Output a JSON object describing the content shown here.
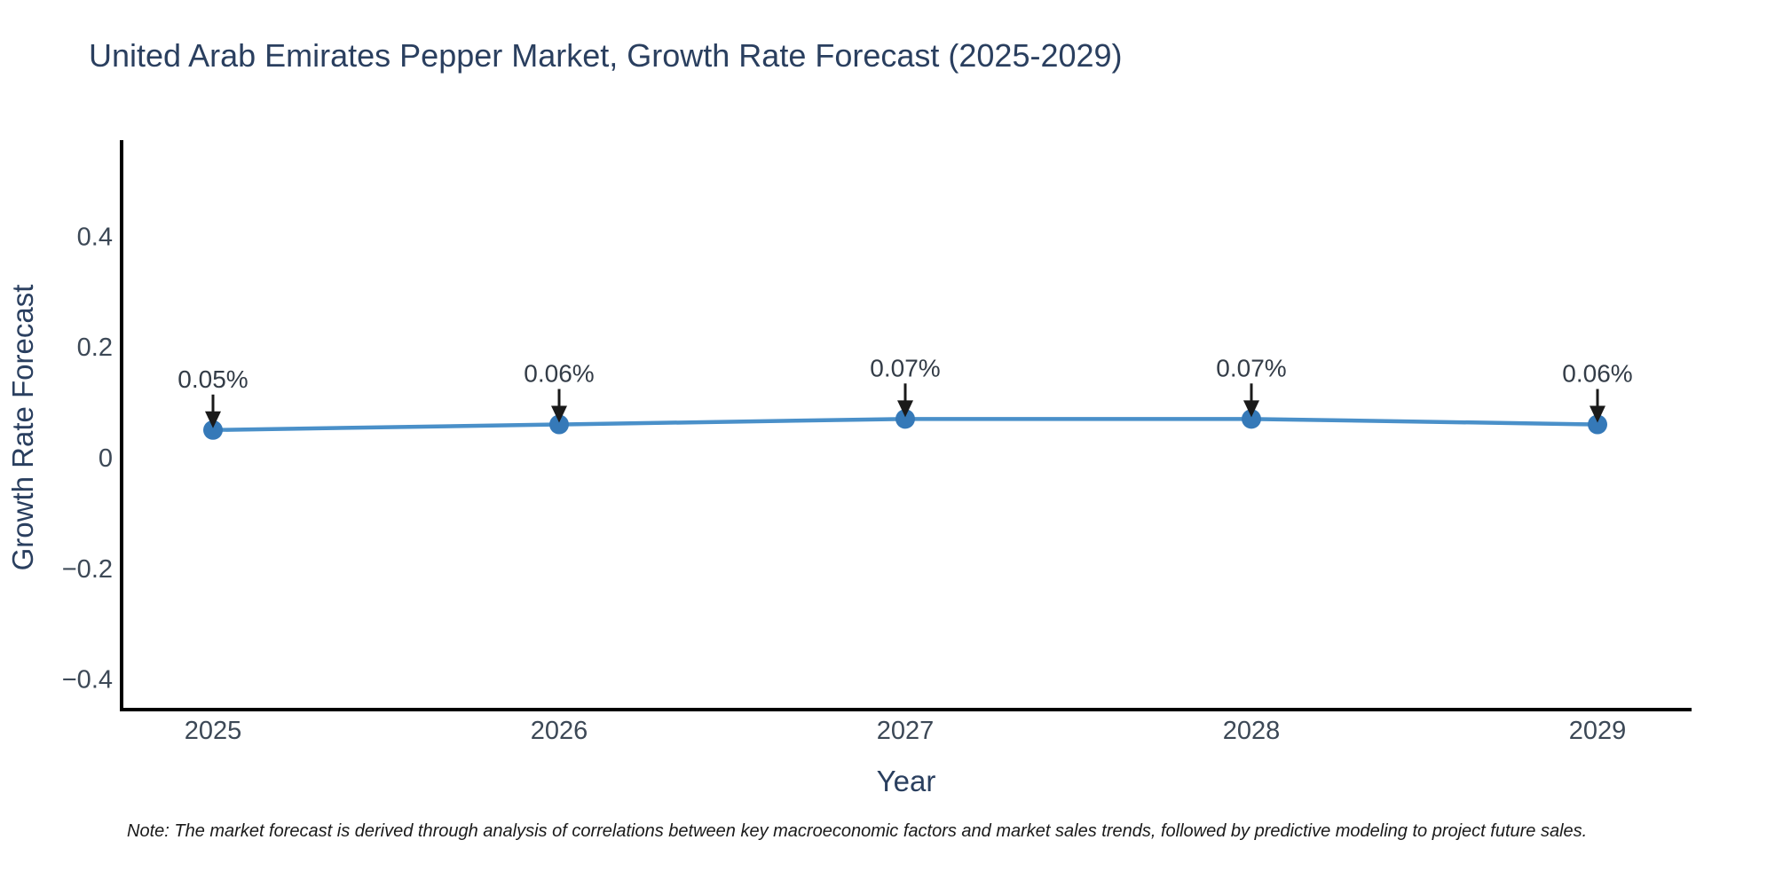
{
  "title": "United Arab Emirates Pepper Market, Growth Rate Forecast (2025-2029)",
  "note": "Note: The market forecast is derived through analysis of correlations between key macroeconomic factors and market sales trends, followed by predictive modeling to project future sales.",
  "chart_data": {
    "type": "line",
    "title": "United Arab Emirates Pepper Market, Growth Rate Forecast (2025-2029)",
    "xlabel": "Year",
    "ylabel": "Growth Rate Forecast",
    "x": [
      2025,
      2026,
      2027,
      2028,
      2029
    ],
    "series": [
      {
        "name": "Growth Rate Forecast",
        "values": [
          0.05,
          0.06,
          0.07,
          0.07,
          0.06
        ]
      }
    ],
    "point_labels": [
      "0.05%",
      "0.06%",
      "0.07%",
      "0.07%",
      "0.06%"
    ],
    "yticks": [
      0.4,
      0.2,
      0,
      -0.2,
      -0.4
    ],
    "ytick_labels": [
      "0.4",
      "0.2",
      "0",
      "−0.2",
      "−0.4"
    ],
    "xtick_labels": [
      "2025",
      "2026",
      "2027",
      "2028",
      "2029"
    ],
    "ylim": [
      -0.46,
      0.57
    ],
    "grid": false,
    "legend": false,
    "colors": {
      "line": "#4a90c9",
      "marker": "#3579b8",
      "axis_line": "#000000",
      "tick_text": "#3c4856",
      "title_text": "#2a3f5f",
      "annotation_text": "#333c47",
      "annotation_arrow": "#1a1a1a",
      "background": "#ffffff"
    }
  }
}
